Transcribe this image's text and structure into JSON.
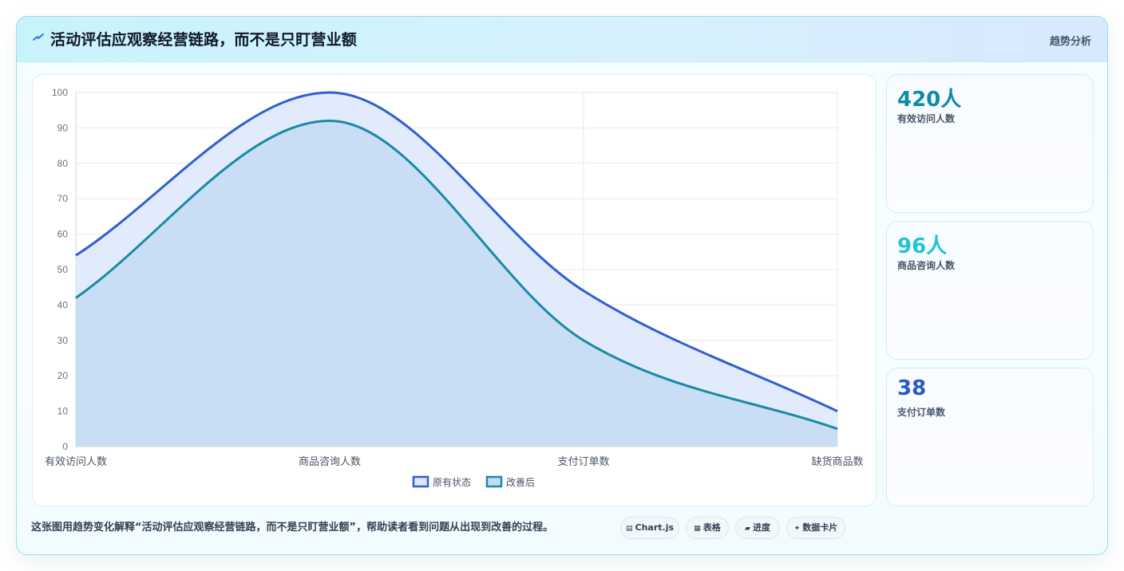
{
  "header": {
    "title": "活动评估应观察经营链路，而不是只盯营业额",
    "tag": "趋势分析",
    "icon": "lightning-icon"
  },
  "chart_data": {
    "type": "area",
    "categories": [
      "有效访问人数",
      "商品咨询人数",
      "支付订单数",
      "缺货商品数"
    ],
    "series": [
      {
        "name": "原有状态",
        "values": [
          54,
          100,
          44,
          10
        ],
        "color": "#2f5fd0",
        "fill": "#dde8fc"
      },
      {
        "name": "改善后",
        "values": [
          42,
          92,
          30,
          5
        ],
        "color": "#1a8aa6",
        "fill": "#c4dcf2"
      }
    ],
    "ylim": [
      0,
      100
    ],
    "yticks": [
      0,
      10,
      20,
      30,
      40,
      50,
      60,
      70,
      80,
      90,
      100
    ],
    "grid": true,
    "legend": "bottom",
    "smooth": true
  },
  "stats": [
    {
      "value": "420人",
      "label": "有效访问人数",
      "color": "#0f8aa3"
    },
    {
      "value": "96人",
      "label": "商品咨询人数",
      "color": "#22c3d8"
    },
    {
      "value": "38",
      "label": "支付订单数",
      "color": "#2558c9"
    }
  ],
  "footer": {
    "text": "这张图用趋势变化解释“活动评估应观察经营链路，而不是只盯营业额”，帮助读者看到问题从出现到改善的过程。",
    "pills": [
      {
        "label": "Chart.js",
        "icon": "chart-icon"
      },
      {
        "label": "表格",
        "icon": "table-icon"
      },
      {
        "label": "进度",
        "icon": "progress-icon"
      },
      {
        "label": "数据卡片",
        "icon": "card-icon"
      }
    ]
  }
}
